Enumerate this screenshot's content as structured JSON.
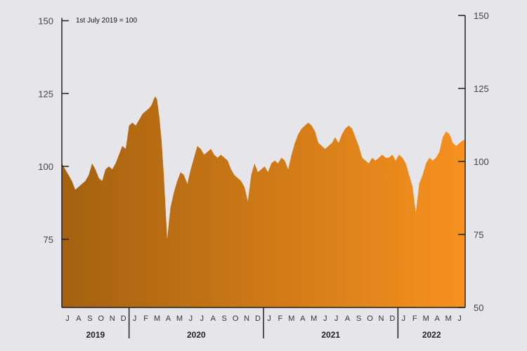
{
  "chart_data": {
    "type": "area",
    "title": "",
    "annotation": "1st July 2019 = 100",
    "xlabel": "",
    "ylabel": "",
    "left_axis": {
      "ylim": [
        50,
        150
      ],
      "ticks": [
        75,
        100,
        125,
        150
      ],
      "tick_labels": [
        "75",
        "100",
        "125",
        "150"
      ]
    },
    "right_axis": {
      "ylim": [
        50,
        150
      ],
      "ticks": [
        50,
        75,
        100,
        125,
        150
      ],
      "tick_labels": [
        "50",
        "75",
        "100",
        "125",
        "150"
      ]
    },
    "months": [
      "J",
      "A",
      "S",
      "O",
      "N",
      "D",
      "J",
      "F",
      "M",
      "A",
      "M",
      "J",
      "J",
      "A",
      "S",
      "O",
      "N",
      "D",
      "J",
      "F",
      "M",
      "A",
      "M",
      "J",
      "J",
      "A",
      "S",
      "O",
      "N",
      "D",
      "J",
      "F",
      "M",
      "A",
      "M",
      "J"
    ],
    "years": [
      {
        "label": "2019",
        "start": 0,
        "end": 6
      },
      {
        "label": "2020",
        "start": 6,
        "end": 18
      },
      {
        "label": "2021",
        "start": 18,
        "end": 30
      },
      {
        "label": "2022",
        "start": 30,
        "end": 36
      }
    ],
    "colors": {
      "start": "#a4610f",
      "end": "#f7911f",
      "axis": "#222222"
    },
    "series": [
      {
        "x": [
          0,
          0.3,
          0.6,
          0.9,
          1.2,
          1.5,
          1.8,
          2.1,
          2.4,
          2.7,
          3.0,
          3.3,
          3.6,
          3.9,
          4.2,
          4.5,
          4.8,
          5.1,
          5.4,
          5.7,
          6.0,
          6.3,
          6.6,
          6.9,
          7.2,
          7.5,
          7.8,
          8.0,
          8.2,
          8.35,
          8.5,
          8.7,
          8.9,
          9.1,
          9.4,
          9.7,
          10.0,
          10.3,
          10.6,
          10.9,
          11.2,
          11.5,
          11.8,
          12.1,
          12.4,
          12.7,
          13.0,
          13.3,
          13.6,
          13.9,
          14.2,
          14.5,
          14.8,
          15.1,
          15.4,
          15.7,
          16.0,
          16.3,
          16.6,
          16.9,
          17.2,
          17.5,
          17.8,
          18.1,
          18.4,
          18.7,
          19.0,
          19.3,
          19.6,
          19.9,
          20.2,
          20.5,
          20.8,
          21.1,
          21.4,
          21.7,
          22.0,
          22.3,
          22.6,
          22.9,
          23.2,
          23.5,
          23.8,
          24.1,
          24.4,
          24.7,
          25.0,
          25.3,
          25.6,
          25.9,
          26.2,
          26.5,
          26.8,
          27.1,
          27.4,
          27.7,
          28.0,
          28.3,
          28.6,
          28.9,
          29.2,
          29.5,
          29.8,
          30.1,
          30.4,
          30.7,
          31.0,
          31.3,
          31.6,
          31.9,
          32.2,
          32.5,
          32.8,
          33.1,
          33.4,
          33.7,
          34.0,
          34.3,
          34.6,
          34.9,
          35.2,
          35.5,
          35.8,
          36.0
        ],
        "values": [
          101,
          99,
          97,
          95,
          92,
          93,
          94,
          95,
          97,
          101,
          99,
          96,
          95,
          99,
          100,
          99,
          101,
          104,
          107,
          106,
          114,
          115,
          114,
          116,
          118,
          119,
          120,
          121,
          123,
          124,
          123,
          117,
          109,
          97,
          75,
          86,
          91,
          95,
          98,
          97,
          94,
          99,
          103,
          107,
          106,
          104,
          105,
          106,
          104,
          103,
          104,
          103,
          102,
          99,
          97,
          96,
          95,
          93,
          88,
          97,
          101,
          98,
          99,
          100,
          98,
          101,
          102,
          101,
          103,
          102,
          99,
          104,
          108,
          111,
          113,
          114,
          115,
          114,
          112,
          108,
          107,
          106,
          107,
          108,
          110,
          108,
          111,
          113,
          114,
          113,
          110,
          107,
          103,
          102,
          101,
          103,
          102,
          103,
          104,
          103,
          103,
          104,
          102,
          104,
          103,
          101,
          97,
          93,
          84,
          94,
          97,
          101,
          103,
          102,
          103,
          105,
          110,
          112,
          111,
          108,
          107,
          108,
          109,
          109
        ]
      }
    ]
  }
}
